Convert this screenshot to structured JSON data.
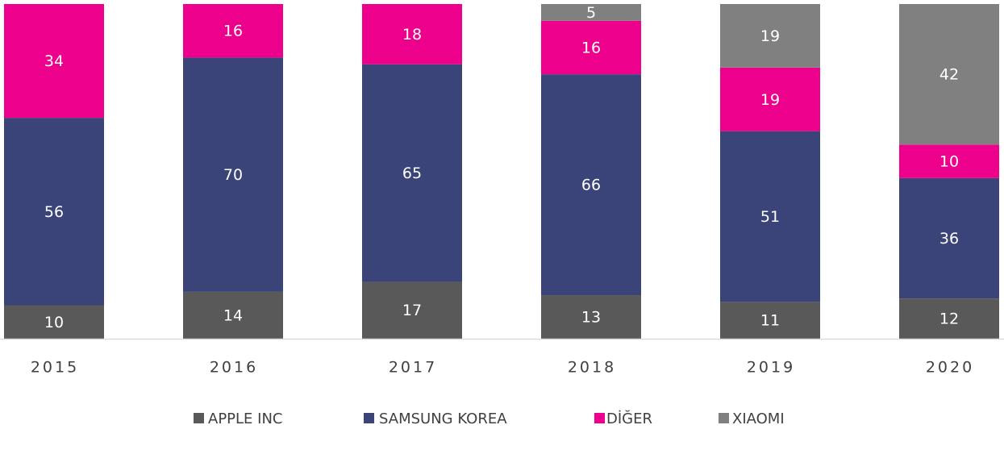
{
  "chart_data": {
    "type": "stacked_bar",
    "categories": [
      "2015",
      "2016",
      "2017",
      "2018",
      "2019",
      "2020"
    ],
    "series": [
      {
        "name": "APPLE INC",
        "color": "#595959",
        "values": [
          10,
          14,
          17,
          13,
          11,
          12
        ]
      },
      {
        "name": "SAMSUNG KOREA",
        "color": "#3a4479",
        "values": [
          56,
          70,
          65,
          66,
          51,
          36
        ]
      },
      {
        "name": "DİĞER",
        "color": "#ec008c",
        "values": [
          34,
          16,
          18,
          16,
          19,
          10
        ]
      },
      {
        "name": "XIAOMI",
        "color": "#808080",
        "values": [
          null,
          null,
          null,
          5,
          19,
          42
        ]
      }
    ],
    "ylim": [
      0,
      100
    ],
    "legend": "bottom"
  }
}
